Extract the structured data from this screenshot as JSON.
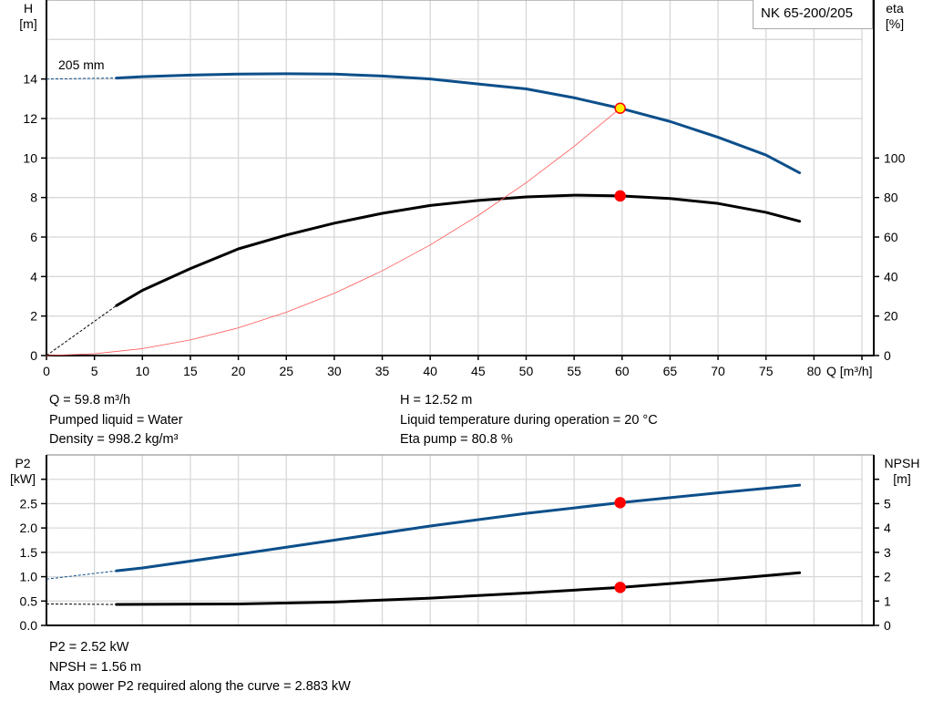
{
  "legend_label": "NK 65-200/205",
  "impeller_label": "205 mm",
  "chart_data": [
    {
      "type": "line",
      "title": "",
      "x_label": "Q [m³/h]",
      "x_range": [
        0,
        85
      ],
      "x_ticks": [
        0,
        5,
        10,
        15,
        20,
        25,
        30,
        35,
        40,
        45,
        50,
        55,
        60,
        65,
        70,
        75,
        80
      ],
      "y_left": {
        "label_line1": "H",
        "label_line2": "[m]",
        "range": [
          0,
          18
        ],
        "ticks": [
          0,
          2,
          4,
          6,
          8,
          10,
          12,
          14
        ]
      },
      "y_right": {
        "label_line1": "eta",
        "label_line2": "[%]",
        "range": [
          0,
          180
        ],
        "ticks": [
          0,
          20,
          40,
          60,
          80,
          100
        ]
      },
      "grid": true,
      "series": [
        {
          "axis": "left",
          "color": "#0c4f8a",
          "width": 3,
          "extension": [
            [
              0,
              14.0
            ],
            [
              7.3,
              14.05
            ]
          ],
          "points": [
            [
              7.3,
              14.05
            ],
            [
              10,
              14.12
            ],
            [
              15,
              14.2
            ],
            [
              20,
              14.25
            ],
            [
              25,
              14.27
            ],
            [
              30,
              14.25
            ],
            [
              35,
              14.15
            ],
            [
              40,
              14.0
            ],
            [
              45,
              13.75
            ],
            [
              50,
              13.5
            ],
            [
              55,
              13.05
            ],
            [
              59.8,
              12.52
            ],
            [
              65,
              11.85
            ],
            [
              70,
              11.05
            ],
            [
              75,
              10.15
            ],
            [
              78.5,
              9.25
            ]
          ]
        },
        {
          "axis": "right",
          "color": "#000000",
          "width": 3,
          "extension": [
            [
              0,
              0
            ],
            [
              7.3,
              25.3
            ]
          ],
          "points": [
            [
              7.3,
              25.3
            ],
            [
              10,
              33
            ],
            [
              15,
              44
            ],
            [
              20,
              54
            ],
            [
              25,
              61
            ],
            [
              30,
              67
            ],
            [
              35,
              72
            ],
            [
              40,
              76
            ],
            [
              45,
              78.5
            ],
            [
              50,
              80.3
            ],
            [
              55,
              81.2
            ],
            [
              59.8,
              80.8
            ],
            [
              65,
              79.5
            ],
            [
              70,
              77
            ],
            [
              75,
              72.5
            ],
            [
              78.5,
              68
            ]
          ]
        },
        {
          "axis": "left",
          "color": "#ff5555",
          "width": 0.8,
          "points": [
            [
              0,
              0
            ],
            [
              5,
              0.09
            ],
            [
              10,
              0.35
            ],
            [
              15,
              0.79
            ],
            [
              20,
              1.4
            ],
            [
              25,
              2.19
            ],
            [
              30,
              3.15
            ],
            [
              35,
              4.29
            ],
            [
              40,
              5.6
            ],
            [
              45,
              7.09
            ],
            [
              50,
              8.75
            ],
            [
              55,
              10.59
            ],
            [
              59.8,
              12.52
            ]
          ]
        }
      ],
      "markers": [
        {
          "axis": "left",
          "x": 59.8,
          "y": 12.52,
          "fill": "#ffee00",
          "stroke": "#ff0000"
        },
        {
          "axis": "right",
          "x": 59.8,
          "y": 80.8,
          "fill": "#ff0000",
          "stroke": "#ff0000"
        }
      ]
    },
    {
      "type": "line",
      "title": "",
      "x_range": [
        0,
        85
      ],
      "y_left": {
        "label_line1": "P2",
        "label_line2": "[kW]",
        "range": [
          0,
          3.5
        ],
        "ticks": [
          "0.0",
          "0.5",
          "1.0",
          "1.5",
          "2.0",
          "2.5"
        ],
        "minor_ticks": [
          3.0
        ]
      },
      "y_right": {
        "label_line1": "NPSH",
        "label_line2": "[m]",
        "range": [
          0,
          7
        ],
        "ticks": [
          0,
          1,
          2,
          3,
          4,
          5
        ],
        "minor_ticks": [
          6
        ]
      },
      "grid": true,
      "series": [
        {
          "axis": "left",
          "color": "#0c4f8a",
          "width": 3,
          "extension": [
            [
              0,
              0.95
            ],
            [
              7.3,
              1.12
            ]
          ],
          "points": [
            [
              7.3,
              1.12
            ],
            [
              10,
              1.18
            ],
            [
              20,
              1.46
            ],
            [
              30,
              1.75
            ],
            [
              40,
              2.04
            ],
            [
              50,
              2.3
            ],
            [
              59.8,
              2.52
            ],
            [
              70,
              2.72
            ],
            [
              78.5,
              2.88
            ]
          ]
        },
        {
          "axis": "right",
          "color": "#000000",
          "width": 3,
          "extension": [
            [
              0,
              0.88
            ],
            [
              7.3,
              0.86
            ]
          ],
          "points": [
            [
              7.3,
              0.86
            ],
            [
              20,
              0.88
            ],
            [
              30,
              0.96
            ],
            [
              40,
              1.12
            ],
            [
              50,
              1.33
            ],
            [
              59.8,
              1.56
            ],
            [
              70,
              1.87
            ],
            [
              78.5,
              2.16
            ]
          ]
        }
      ],
      "markers": [
        {
          "axis": "left",
          "x": 59.8,
          "y": 2.52,
          "fill": "#ff0000",
          "stroke": "#ff0000"
        },
        {
          "axis": "right",
          "x": 59.8,
          "y": 1.56,
          "fill": "#ff0000",
          "stroke": "#ff0000"
        }
      ]
    }
  ],
  "info_top": {
    "left": [
      "Q = 59.8 m³/h",
      "Pumped liquid = Water",
      "Density = 998.2 kg/m³"
    ],
    "right": [
      "H = 12.52 m",
      "Liquid temperature during operation = 20 °C",
      "Eta pump = 80.8 %"
    ]
  },
  "info_bottom": [
    "P2 = 2.52 kW",
    "NPSH = 1.56 m",
    "Max power P2 required along the curve = 2.883 kW"
  ]
}
